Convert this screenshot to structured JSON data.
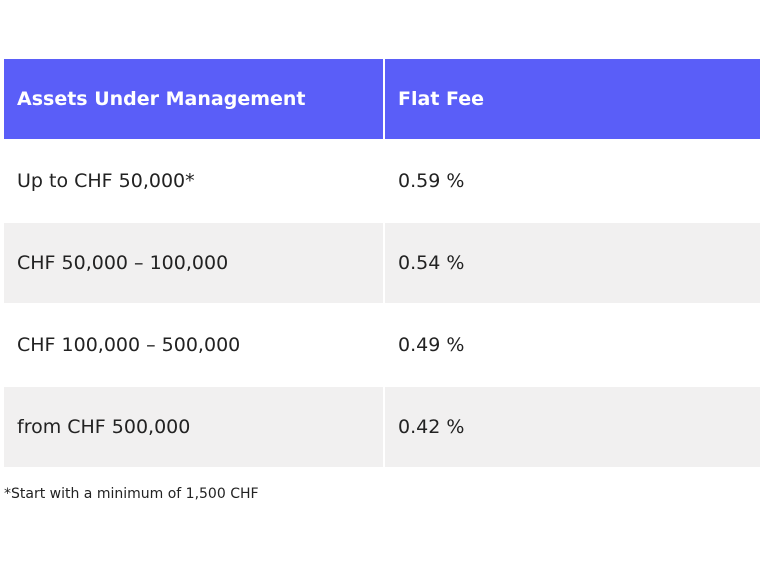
{
  "table": {
    "header": [
      "Assets Under Management",
      "Flat Fee"
    ],
    "rows": [
      [
        "Up to CHF 50,000*",
        "0.59 %"
      ],
      [
        "CHF 50,000 – 100,000",
        "0.54 %"
      ],
      [
        "CHF 100,000 – 500,000",
        "0.49 %"
      ],
      [
        "from CHF 500,000",
        "0.42 %"
      ]
    ]
  },
  "footnote": "*Start with a minimum of 1,500 CHF"
}
